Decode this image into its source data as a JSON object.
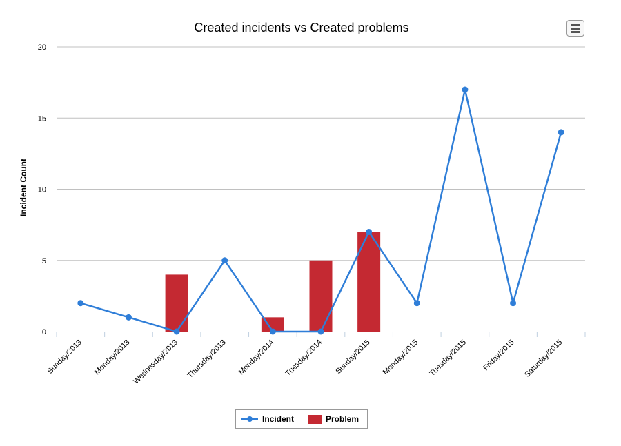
{
  "chart_data": {
    "type": "bar",
    "title": "Created incidents vs Created problems",
    "xlabel": "",
    "ylabel": "Incident Count",
    "ylim": [
      0,
      20
    ],
    "yticks": [
      0,
      5,
      10,
      15,
      20
    ],
    "grid": true,
    "legend_position": "bottom",
    "categories": [
      "Sunday/2013",
      "Monday/2013",
      "Wednesday/2013",
      "Thursday/2013",
      "Monday/2014",
      "Tuesday/2014",
      "Sunday/2015",
      "Monday/2015",
      "Tuesday/2015",
      "Friday/2015",
      "Saturday/2015"
    ],
    "series": [
      {
        "name": "Incident",
        "type": "line",
        "color": "#2f7ed8",
        "values": [
          2,
          1,
          0,
          5,
          0,
          0,
          7,
          2,
          17,
          2,
          14
        ]
      },
      {
        "name": "Problem",
        "type": "bar",
        "color": "#c42932",
        "values": [
          0,
          0,
          4,
          0,
          1,
          5,
          7,
          0,
          0,
          0,
          0
        ]
      }
    ]
  },
  "menu": {
    "icon": "hamburger-menu-icon"
  }
}
